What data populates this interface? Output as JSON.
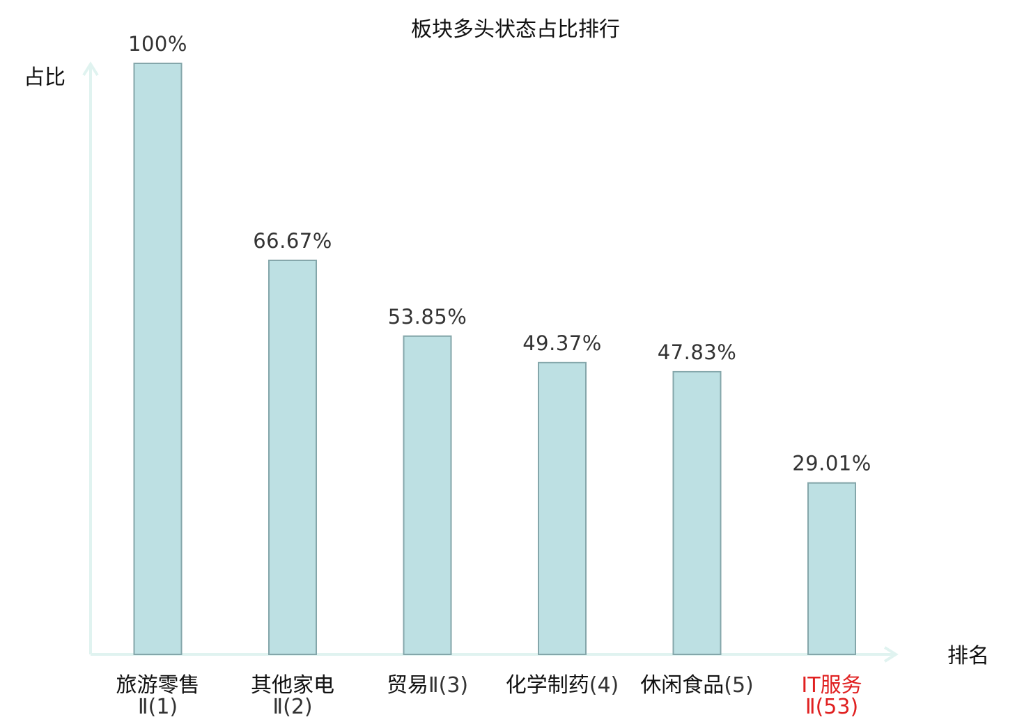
{
  "chart_data": {
    "type": "bar",
    "title": "板块多头状态占比排行",
    "ylabel": "占比",
    "xlabel": "排名",
    "ylim": [
      0,
      100
    ],
    "grid": false,
    "categories": [
      {
        "name": "旅游零售",
        "rank": "Ⅱ(1)",
        "highlight": false
      },
      {
        "name": "其他家电",
        "rank": "Ⅱ(2)",
        "highlight": false
      },
      {
        "name": "贸易",
        "rank": "Ⅱ(3)",
        "highlight": false
      },
      {
        "name": "化学制药",
        "rank": "(4)",
        "highlight": false
      },
      {
        "name": "休闲食品",
        "rank": "(5)",
        "highlight": false
      },
      {
        "name": "IT服务",
        "rank": "Ⅱ(53)",
        "highlight": true
      }
    ],
    "values": [
      100,
      66.67,
      53.85,
      49.37,
      47.83,
      29.01
    ],
    "value_labels": [
      "100%",
      "66.67%",
      "53.85%",
      "49.37%",
      "47.83%",
      "29.01%"
    ],
    "colors": {
      "bar_fill": "#bde0e3",
      "bar_stroke": "#84a6aa",
      "axis": "#e0f3f0",
      "highlight": "#e02020"
    }
  }
}
